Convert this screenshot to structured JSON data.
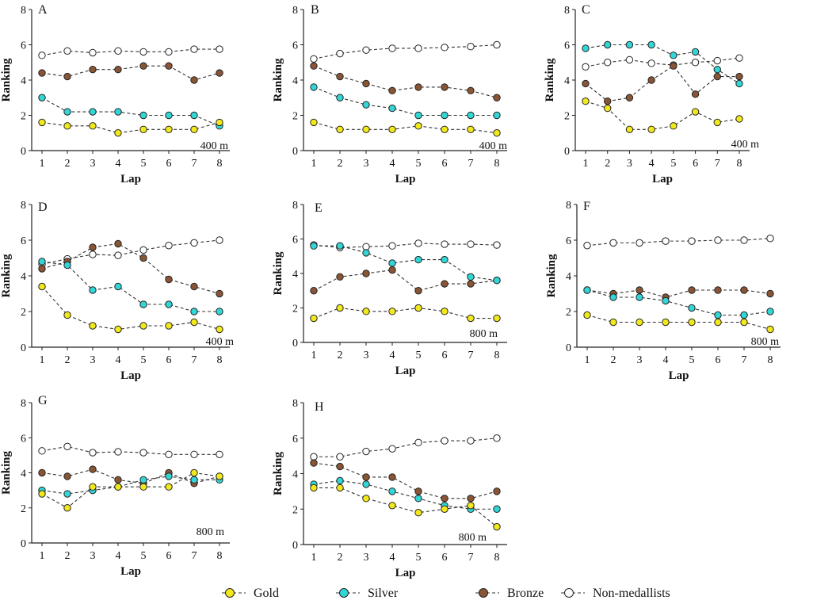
{
  "chart_data": [
    {
      "type": "line",
      "panel": "A",
      "distance": "400 m",
      "xlabel": "Lap",
      "ylabel": "Ranking",
      "ylim": [
        0,
        8
      ],
      "x": [
        1,
        2,
        3,
        4,
        5,
        6,
        7,
        8
      ],
      "series": [
        {
          "name": "Non-medallists",
          "values": [
            5.4,
            5.65,
            5.55,
            5.65,
            5.6,
            5.6,
            5.75,
            5.75
          ]
        },
        {
          "name": "Bronze",
          "values": [
            4.4,
            4.2,
            4.6,
            4.6,
            4.8,
            4.8,
            4.0,
            4.4
          ]
        },
        {
          "name": "Silver",
          "values": [
            3.0,
            2.2,
            2.2,
            2.2,
            2.0,
            2.0,
            2.0,
            1.4
          ]
        },
        {
          "name": "Gold",
          "values": [
            1.6,
            1.4,
            1.4,
            1.0,
            1.2,
            1.2,
            1.2,
            1.6
          ]
        }
      ]
    },
    {
      "type": "line",
      "panel": "B",
      "distance": "400 m",
      "xlabel": "Lap",
      "ylabel": "Ranking",
      "ylim": [
        0,
        8
      ],
      "x": [
        1,
        2,
        3,
        4,
        5,
        6,
        7,
        8
      ],
      "series": [
        {
          "name": "Non-medallists",
          "values": [
            5.2,
            5.5,
            5.7,
            5.8,
            5.8,
            5.85,
            5.9,
            6.0
          ]
        },
        {
          "name": "Bronze",
          "values": [
            4.8,
            4.2,
            3.8,
            3.4,
            3.6,
            3.6,
            3.4,
            3.0
          ]
        },
        {
          "name": "Silver",
          "values": [
            3.6,
            3.0,
            2.6,
            2.4,
            2.0,
            2.0,
            2.0,
            2.0
          ]
        },
        {
          "name": "Gold",
          "values": [
            1.6,
            1.2,
            1.2,
            1.2,
            1.4,
            1.2,
            1.2,
            1.0
          ]
        }
      ]
    },
    {
      "type": "line",
      "panel": "C",
      "distance": "400 m",
      "xlabel": "Lap",
      "ylabel": "Ranking",
      "ylim": [
        0,
        8
      ],
      "x": [
        1,
        2,
        3,
        4,
        5,
        6,
        7,
        8
      ],
      "series": [
        {
          "name": "Non-medallists",
          "values": [
            4.75,
            5.0,
            5.15,
            4.95,
            4.85,
            5.0,
            5.1,
            5.25
          ]
        },
        {
          "name": "Bronze",
          "values": [
            3.8,
            2.8,
            3.0,
            4.0,
            4.8,
            3.2,
            4.2,
            4.2
          ]
        },
        {
          "name": "Silver",
          "values": [
            5.8,
            6.0,
            6.0,
            6.0,
            5.4,
            5.6,
            4.6,
            3.8
          ]
        },
        {
          "name": "Gold",
          "values": [
            2.8,
            2.4,
            1.2,
            1.2,
            1.4,
            2.2,
            1.6,
            1.8
          ]
        }
      ]
    },
    {
      "type": "line",
      "panel": "D",
      "distance": "400 m",
      "xlabel": "Lap",
      "ylabel": "Ranking",
      "ylim": [
        0,
        8
      ],
      "x": [
        1,
        2,
        3,
        4,
        5,
        6,
        7,
        8
      ],
      "series": [
        {
          "name": "Non-medallists",
          "values": [
            4.65,
            4.95,
            5.2,
            5.15,
            5.45,
            5.7,
            5.85,
            6.0
          ]
        },
        {
          "name": "Bronze",
          "values": [
            4.4,
            4.8,
            5.6,
            5.8,
            5.0,
            3.8,
            3.4,
            3.0
          ]
        },
        {
          "name": "Silver",
          "values": [
            4.8,
            4.6,
            3.2,
            3.4,
            2.4,
            2.4,
            2.0,
            2.0
          ]
        },
        {
          "name": "Gold",
          "values": [
            3.4,
            1.8,
            1.2,
            1.0,
            1.2,
            1.2,
            1.4,
            1.0
          ]
        }
      ]
    },
    {
      "type": "line",
      "panel": "E",
      "distance": "800 m",
      "xlabel": "Lap",
      "ylabel": "Ranking",
      "ylim": [
        0,
        8
      ],
      "x": [
        1,
        2,
        3,
        4,
        5,
        6,
        7,
        8
      ],
      "series": [
        {
          "name": "Non-medallists",
          "values": [
            5.65,
            5.5,
            5.55,
            5.6,
            5.75,
            5.7,
            5.7,
            5.65
          ]
        },
        {
          "name": "Bronze",
          "values": [
            3.0,
            3.8,
            4.0,
            4.2,
            3.0,
            3.4,
            3.4,
            3.6
          ]
        },
        {
          "name": "Silver",
          "values": [
            5.6,
            5.6,
            5.2,
            4.6,
            4.8,
            4.8,
            3.8,
            3.6
          ]
        },
        {
          "name": "Gold",
          "values": [
            1.4,
            2.0,
            1.8,
            1.8,
            2.0,
            1.8,
            1.4,
            1.4
          ]
        }
      ]
    },
    {
      "type": "line",
      "panel": "F",
      "distance": "800 m",
      "xlabel": "Lap",
      "ylabel": "Ranking",
      "ylim": [
        0,
        8
      ],
      "x": [
        1,
        2,
        3,
        4,
        5,
        6,
        7,
        8
      ],
      "series": [
        {
          "name": "Non-medallists",
          "values": [
            5.7,
            5.85,
            5.85,
            5.95,
            5.95,
            6.0,
            6.0,
            6.1
          ]
        },
        {
          "name": "Bronze",
          "values": [
            3.2,
            3.0,
            3.2,
            2.8,
            3.2,
            3.2,
            3.2,
            3.0
          ]
        },
        {
          "name": "Silver",
          "values": [
            3.2,
            2.8,
            2.8,
            2.6,
            2.2,
            1.8,
            1.8,
            2.0
          ]
        },
        {
          "name": "Gold",
          "values": [
            1.8,
            1.4,
            1.4,
            1.4,
            1.4,
            1.4,
            1.4,
            1.0
          ]
        }
      ]
    },
    {
      "type": "line",
      "panel": "G",
      "distance": "800 m",
      "xlabel": "Lap",
      "ylabel": "Ranking",
      "ylim": [
        0,
        8
      ],
      "x": [
        1,
        2,
        3,
        4,
        5,
        6,
        7,
        8
      ],
      "series": [
        {
          "name": "Non-medallists",
          "values": [
            5.25,
            5.5,
            5.15,
            5.2,
            5.15,
            5.05,
            5.05,
            5.05
          ]
        },
        {
          "name": "Bronze",
          "values": [
            4.0,
            3.8,
            4.2,
            3.6,
            3.4,
            4.0,
            3.4,
            3.8
          ]
        },
        {
          "name": "Silver",
          "values": [
            3.0,
            2.8,
            3.0,
            3.2,
            3.6,
            3.8,
            3.6,
            3.6
          ]
        },
        {
          "name": "Gold",
          "values": [
            2.8,
            2.0,
            3.2,
            3.2,
            3.2,
            3.2,
            4.0,
            3.8
          ]
        }
      ]
    },
    {
      "type": "line",
      "panel": "H",
      "distance": "800 m",
      "xlabel": "Lap",
      "ylabel": "Ranking",
      "ylim": [
        0,
        8
      ],
      "x": [
        1,
        2,
        3,
        4,
        5,
        6,
        7,
        8
      ],
      "series": [
        {
          "name": "Non-medallists",
          "values": [
            4.95,
            4.95,
            5.25,
            5.4,
            5.75,
            5.85,
            5.85,
            6.0
          ]
        },
        {
          "name": "Bronze",
          "values": [
            4.6,
            4.4,
            3.8,
            3.8,
            3.0,
            2.6,
            2.6,
            3.0
          ]
        },
        {
          "name": "Silver",
          "values": [
            3.4,
            3.6,
            3.4,
            3.0,
            2.6,
            2.2,
            2.0,
            2.0
          ]
        },
        {
          "name": "Gold",
          "values": [
            3.2,
            3.2,
            2.6,
            2.2,
            1.8,
            2.0,
            2.2,
            1.0
          ]
        }
      ]
    }
  ],
  "y_ticks": [
    0,
    2,
    4,
    6,
    8
  ],
  "legend": [
    {
      "name": "Gold",
      "color": "#f2e91c"
    },
    {
      "name": "Silver",
      "color": "#33d6d6"
    },
    {
      "name": "Bronze",
      "color": "#8a5535"
    },
    {
      "name": "Non-medallists",
      "color": "#ffffff"
    }
  ]
}
